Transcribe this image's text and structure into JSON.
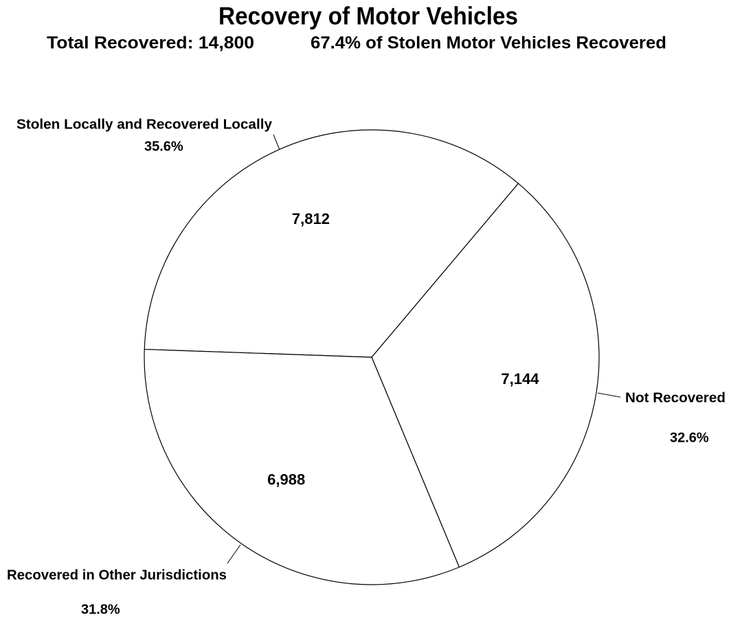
{
  "chart_data": {
    "type": "pie",
    "title": "Recovery of Motor Vehicles",
    "subtitles": [
      "Total Recovered: 14,800",
      "67.4% of Stolen Motor Vehicles Recovered"
    ],
    "categories": [
      "Stolen Locally and Recovered Locally",
      "Not Recovered",
      "Recovered in Other Jurisdictions"
    ],
    "values": [
      7812,
      7144,
      6988
    ],
    "value_labels": [
      "7,812",
      "7,144",
      "6,988"
    ],
    "percent_labels": [
      "35.6%",
      "32.6%",
      "31.8%"
    ],
    "colors": [
      "#ffffff",
      "#ffffff",
      "#ffffff"
    ]
  }
}
